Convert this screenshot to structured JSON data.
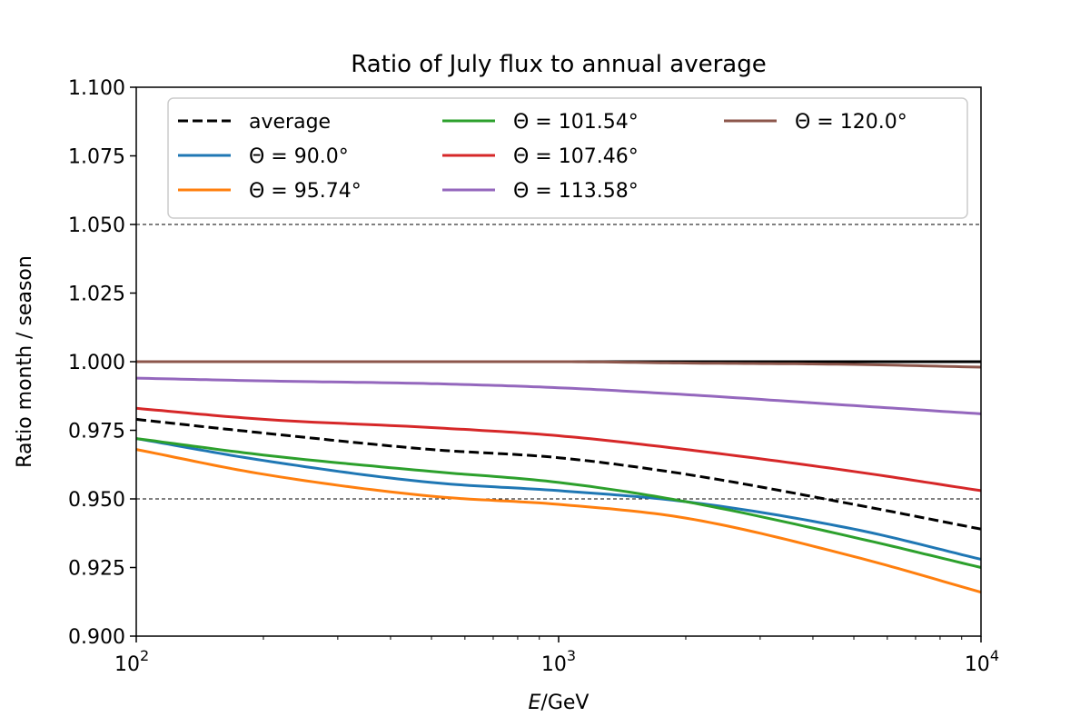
{
  "chart_data": {
    "type": "line",
    "title": "Ratio of July flux to annual average",
    "xlabel_var": "E",
    "xlabel_unit": "/GeV",
    "ylabel": "Ratio month / season",
    "xscale": "log",
    "xlim": [
      100,
      10000
    ],
    "ylim": [
      0.9,
      1.1
    ],
    "x_ticks": [
      100,
      1000,
      10000
    ],
    "x_tick_labels": [
      {
        "base": "10",
        "exp": "2"
      },
      {
        "base": "10",
        "exp": "3"
      },
      {
        "base": "10",
        "exp": "4"
      }
    ],
    "y_ticks": [
      0.9,
      0.925,
      0.95,
      0.975,
      1.0,
      1.025,
      1.05,
      1.075,
      1.1
    ],
    "y_tick_labels": [
      "0.900",
      "0.925",
      "0.950",
      "0.975",
      "1.000",
      "1.025",
      "1.050",
      "1.075",
      "1.100"
    ],
    "reference_lines": [
      1.05,
      0.95
    ],
    "legend_position": "top",
    "legend_columns": 3,
    "x": [
      100,
      200,
      500,
      1000,
      2000,
      5000,
      10000
    ],
    "series": [
      {
        "name": "average",
        "color": "#000000",
        "dashed": true,
        "values": [
          0.979,
          0.974,
          0.968,
          0.965,
          0.959,
          0.948,
          0.939
        ]
      },
      {
        "name": "Θ =  90.0°",
        "color": "#1f77b4",
        "dashed": false,
        "values": [
          0.972,
          0.964,
          0.956,
          0.953,
          0.949,
          0.939,
          0.928
        ]
      },
      {
        "name": "Θ =  95.74°",
        "color": "#ff7f0e",
        "dashed": false,
        "values": [
          0.968,
          0.959,
          0.951,
          0.948,
          0.943,
          0.929,
          0.916
        ]
      },
      {
        "name": "Θ =  101.54°",
        "color": "#2ca02c",
        "dashed": false,
        "values": [
          0.972,
          0.966,
          0.96,
          0.956,
          0.949,
          0.936,
          0.925
        ]
      },
      {
        "name": "Θ =  107.46°",
        "color": "#d62728",
        "dashed": false,
        "values": [
          0.983,
          0.979,
          0.976,
          0.973,
          0.968,
          0.96,
          0.953
        ]
      },
      {
        "name": "Θ =  113.58°",
        "color": "#9467bd",
        "dashed": false,
        "values": [
          0.994,
          0.993,
          0.992,
          0.9905,
          0.988,
          0.984,
          0.981
        ]
      },
      {
        "name": "Θ =  120.0°",
        "color": "#8c564b",
        "dashed": false,
        "values": [
          1.0,
          1.0,
          1.0,
          1.0,
          0.9995,
          0.999,
          0.998
        ]
      }
    ]
  }
}
